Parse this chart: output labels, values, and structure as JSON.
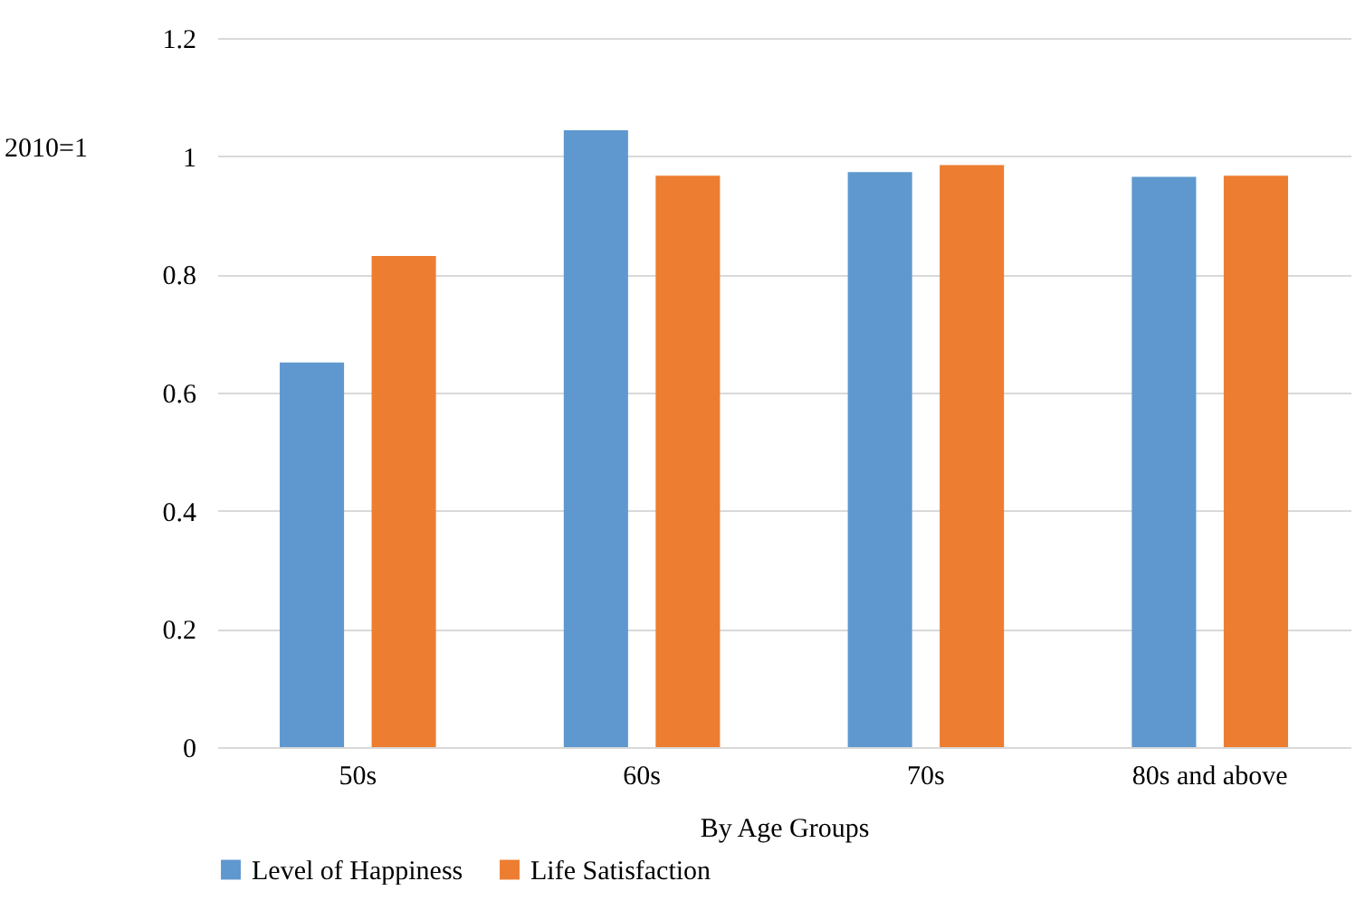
{
  "chart_data": {
    "type": "bar",
    "xlabel": "By Age Groups",
    "ylabel": "2010=1",
    "categories": [
      "50s",
      "60s",
      "70s",
      "80s and above"
    ],
    "series": [
      {
        "name": "Level of Happiness",
        "color": "#5f98cf",
        "values": [
          0.651,
          1.044,
          0.973,
          0.965
        ]
      },
      {
        "name": "Life Satisfaction",
        "color": "#ed7d31",
        "values": [
          0.831,
          0.967,
          0.985,
          0.967
        ]
      }
    ],
    "ylim": [
      0,
      1.2
    ],
    "yticks": [
      0,
      0.2,
      0.4,
      0.6,
      0.8,
      1,
      1.2
    ],
    "grid": "y",
    "legend": "bottom"
  }
}
